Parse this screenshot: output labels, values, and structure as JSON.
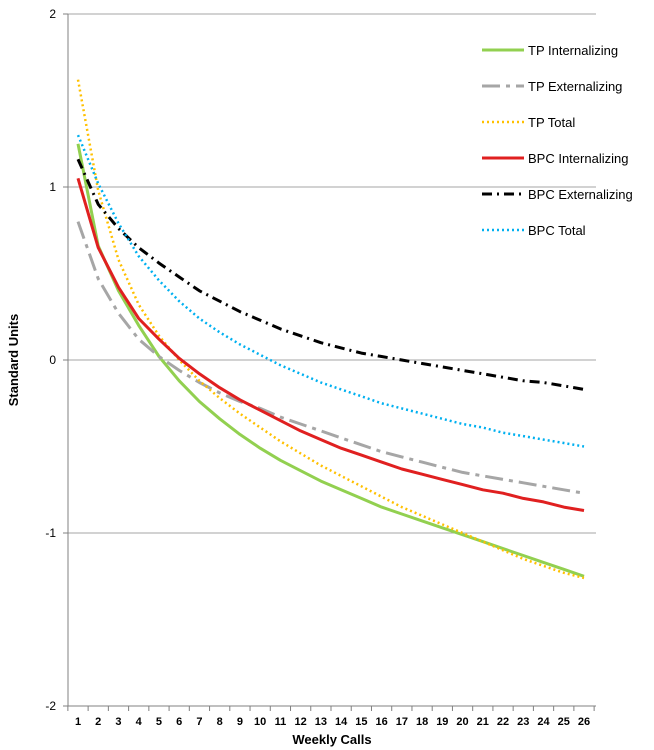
{
  "chart_data": {
    "type": "line",
    "title": "",
    "xlabel": "Weekly Calls",
    "ylabel": "Standard Units",
    "x": [
      1,
      2,
      3,
      4,
      5,
      6,
      7,
      8,
      9,
      10,
      11,
      12,
      13,
      14,
      15,
      16,
      17,
      18,
      19,
      20,
      21,
      22,
      23,
      24,
      25,
      26
    ],
    "x_tick_labels": [
      "1",
      "2",
      "3",
      "4",
      "5",
      "6",
      "7",
      "8",
      "9",
      "10",
      "11",
      "12",
      "13",
      "14",
      "15",
      "16",
      "17",
      "18",
      "19",
      "20",
      "21",
      "22",
      "23",
      "24",
      "25",
      "26"
    ],
    "y_tick_labels": [
      "2",
      "1",
      "0",
      "-1",
      "-2"
    ],
    "y_ticks": [
      2,
      1,
      0,
      -1,
      -2
    ],
    "ylim": [
      -2,
      2
    ],
    "grid": true,
    "legend_position": "top-right",
    "series": [
      {
        "name": "TP Internalizing",
        "color": "#92d050",
        "dash": "solid",
        "values": [
          1.25,
          0.66,
          0.4,
          0.2,
          0.02,
          -0.12,
          -0.24,
          -0.34,
          -0.43,
          -0.51,
          -0.58,
          -0.64,
          -0.7,
          -0.75,
          -0.8,
          -0.85,
          -0.89,
          -0.93,
          -0.97,
          -1.01,
          -1.05,
          -1.09,
          -1.13,
          -1.17,
          -1.21,
          -1.25
        ]
      },
      {
        "name": "TP Externalizing",
        "color": "#a6a6a6",
        "dash": "long-dash-dot",
        "values": [
          0.8,
          0.47,
          0.27,
          0.12,
          0.02,
          -0.06,
          -0.13,
          -0.19,
          -0.24,
          -0.28,
          -0.33,
          -0.37,
          -0.41,
          -0.45,
          -0.49,
          -0.53,
          -0.56,
          -0.59,
          -0.62,
          -0.65,
          -0.67,
          -0.69,
          -0.71,
          -0.73,
          -0.75,
          -0.77
        ]
      },
      {
        "name": "TP Total",
        "color": "#ffc000",
        "dash": "dotted",
        "values": [
          1.62,
          0.98,
          0.58,
          0.32,
          0.14,
          0.0,
          -0.12,
          -0.22,
          -0.31,
          -0.39,
          -0.47,
          -0.54,
          -0.61,
          -0.67,
          -0.73,
          -0.79,
          -0.85,
          -0.9,
          -0.95,
          -1.0,
          -1.05,
          -1.1,
          -1.15,
          -1.19,
          -1.23,
          -1.26
        ]
      },
      {
        "name": "BPC Internalizing",
        "color": "#e02020",
        "dash": "solid",
        "values": [
          1.05,
          0.65,
          0.42,
          0.24,
          0.12,
          0.01,
          -0.08,
          -0.16,
          -0.23,
          -0.29,
          -0.35,
          -0.41,
          -0.46,
          -0.51,
          -0.55,
          -0.59,
          -0.63,
          -0.66,
          -0.69,
          -0.72,
          -0.75,
          -0.77,
          -0.8,
          -0.82,
          -0.85,
          -0.87
        ]
      },
      {
        "name": "BPC Externalizing",
        "color": "#000000",
        "dash": "dash-dot",
        "values": [
          1.16,
          0.9,
          0.76,
          0.65,
          0.56,
          0.48,
          0.4,
          0.34,
          0.28,
          0.23,
          0.18,
          0.14,
          0.1,
          0.07,
          0.04,
          0.02,
          0.0,
          -0.02,
          -0.04,
          -0.06,
          -0.08,
          -0.1,
          -0.12,
          -0.13,
          -0.15,
          -0.17
        ]
      },
      {
        "name": "BPC Total",
        "color": "#00b0f0",
        "dash": "dotted",
        "values": [
          1.3,
          1.02,
          0.79,
          0.6,
          0.46,
          0.34,
          0.24,
          0.16,
          0.09,
          0.03,
          -0.03,
          -0.08,
          -0.13,
          -0.17,
          -0.21,
          -0.25,
          -0.28,
          -0.31,
          -0.34,
          -0.37,
          -0.39,
          -0.42,
          -0.44,
          -0.46,
          -0.48,
          -0.5
        ]
      }
    ]
  }
}
